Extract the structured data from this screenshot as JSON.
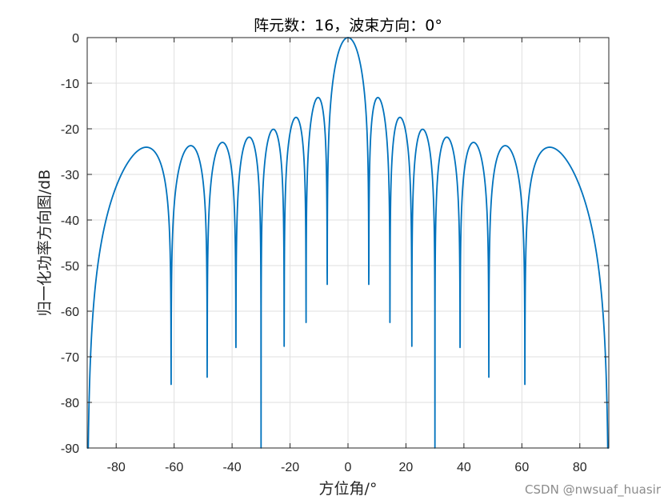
{
  "chart_data": {
    "type": "line",
    "title": "阵元数：16，波束方向：0°",
    "xlabel": "方位角/°",
    "ylabel": "归一化功率方向图/dB",
    "xlim": [
      -90,
      90
    ],
    "ylim": [
      -90,
      0
    ],
    "xticks": [
      -80,
      -60,
      -40,
      -20,
      0,
      20,
      40,
      60,
      80
    ],
    "yticks": [
      0,
      -10,
      -20,
      -30,
      -40,
      -50,
      -60,
      -70,
      -80,
      -90
    ],
    "grid": true,
    "series": [
      {
        "color": "#0072BD",
        "model": {
          "elements": 16,
          "spacing_wavelengths": 0.5,
          "steer_deg": 0
        }
      }
    ]
  },
  "watermark": "CSDN @nwsuaf_huasir"
}
